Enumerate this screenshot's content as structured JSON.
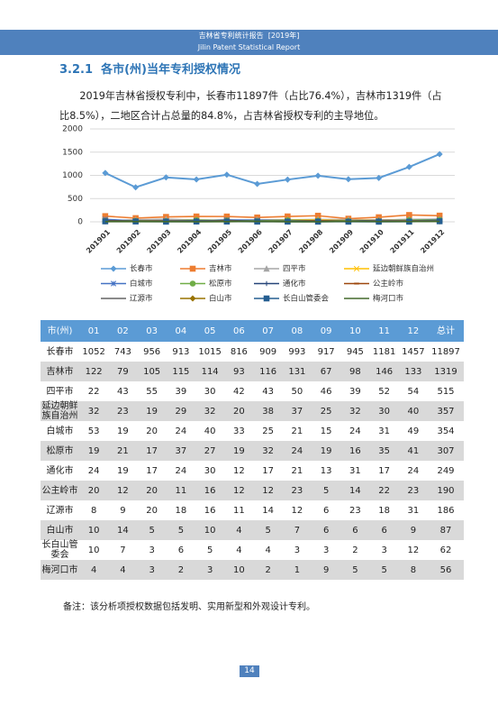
{
  "header": {
    "title": "吉林省专利统计报告",
    "year": "[2019年]",
    "subtitle": "Jilin Patent Statistical Report"
  },
  "section": {
    "number": "3.2.1",
    "title": "各市(州)当年专利授权情况"
  },
  "paragraph": "2019年吉林省授权专利中，长春市11897件（占比76.4%），吉林市1319件（占比8.5%），二地区合计占总量的84.8%，占吉林省授权专利的主导地位。",
  "chart_data": {
    "type": "line",
    "categories": [
      "201901",
      "201902",
      "201903",
      "201904",
      "201905",
      "201906",
      "201907",
      "201908",
      "201909",
      "201910",
      "201911",
      "201912"
    ],
    "ylim": [
      0,
      2000
    ],
    "yticks": [
      0,
      500,
      1000,
      1500,
      2000
    ],
    "grid": true,
    "series": [
      {
        "name": "长春市",
        "color": "#5b9bd5",
        "marker": "diamond",
        "values": [
          1052,
          743,
          956,
          913,
          1015,
          816,
          909,
          993,
          917,
          945,
          1181,
          1457
        ]
      },
      {
        "name": "吉林市",
        "color": "#ed7d31",
        "marker": "square",
        "values": [
          122,
          79,
          105,
          115,
          114,
          93,
          116,
          131,
          67,
          98,
          146,
          133
        ]
      },
      {
        "name": "四平市",
        "color": "#a5a5a5",
        "marker": "triangle",
        "values": [
          22,
          43,
          55,
          39,
          30,
          42,
          43,
          50,
          46,
          39,
          52,
          54
        ]
      },
      {
        "name": "延边朝鲜族自治州",
        "color": "#ffc000",
        "marker": "x",
        "values": [
          32,
          23,
          19,
          29,
          32,
          20,
          38,
          37,
          25,
          32,
          30,
          40
        ]
      },
      {
        "name": "白城市",
        "color": "#4472c4",
        "marker": "star",
        "values": [
          53,
          19,
          20,
          24,
          40,
          33,
          25,
          21,
          15,
          24,
          31,
          49
        ]
      },
      {
        "name": "松原市",
        "color": "#70ad47",
        "marker": "circle",
        "values": [
          19,
          21,
          17,
          37,
          27,
          19,
          32,
          24,
          19,
          16,
          35,
          41
        ]
      },
      {
        "name": "通化市",
        "color": "#264478",
        "marker": "plus",
        "values": [
          24,
          19,
          17,
          24,
          30,
          12,
          17,
          21,
          13,
          31,
          17,
          24
        ]
      },
      {
        "name": "公主岭市",
        "color": "#9e480e",
        "marker": "dash",
        "values": [
          20,
          12,
          20,
          11,
          16,
          12,
          12,
          23,
          5,
          14,
          22,
          23
        ]
      },
      {
        "name": "辽源市",
        "color": "#636363",
        "marker": "none",
        "values": [
          8,
          9,
          20,
          18,
          16,
          11,
          14,
          12,
          6,
          23,
          18,
          31
        ]
      },
      {
        "name": "白山市",
        "color": "#997300",
        "marker": "diamond",
        "values": [
          10,
          14,
          5,
          5,
          10,
          4,
          5,
          7,
          6,
          6,
          6,
          9
        ]
      },
      {
        "name": "长白山管委会",
        "color": "#255e91",
        "marker": "square",
        "values": [
          10,
          7,
          3,
          6,
          5,
          4,
          4,
          3,
          3,
          2,
          3,
          12
        ]
      },
      {
        "name": "梅河口市",
        "color": "#43682b",
        "marker": "none",
        "values": [
          4,
          4,
          3,
          2,
          3,
          10,
          2,
          1,
          9,
          5,
          5,
          8
        ]
      }
    ]
  },
  "table": {
    "header": [
      "市(州)",
      "01",
      "02",
      "03",
      "04",
      "05",
      "06",
      "07",
      "08",
      "09",
      "10",
      "11",
      "12",
      "总计"
    ],
    "rows": [
      [
        "长春市",
        1052,
        743,
        956,
        913,
        1015,
        816,
        909,
        993,
        917,
        945,
        1181,
        1457,
        11897
      ],
      [
        "吉林市",
        122,
        79,
        105,
        115,
        114,
        93,
        116,
        131,
        67,
        98,
        146,
        133,
        1319
      ],
      [
        "四平市",
        22,
        43,
        55,
        39,
        30,
        42,
        43,
        50,
        46,
        39,
        52,
        54,
        515
      ],
      [
        "延边朝鲜族自治州",
        32,
        23,
        19,
        29,
        32,
        20,
        38,
        37,
        25,
        32,
        30,
        40,
        357
      ],
      [
        "白城市",
        53,
        19,
        20,
        24,
        40,
        33,
        25,
        21,
        15,
        24,
        31,
        49,
        354
      ],
      [
        "松原市",
        19,
        21,
        17,
        37,
        27,
        19,
        32,
        24,
        19,
        16,
        35,
        41,
        307
      ],
      [
        "通化市",
        24,
        19,
        17,
        24,
        30,
        12,
        17,
        21,
        13,
        31,
        17,
        24,
        249
      ],
      [
        "公主岭市",
        20,
        12,
        20,
        11,
        16,
        12,
        12,
        23,
        5,
        14,
        22,
        23,
        190
      ],
      [
        "辽源市",
        8,
        9,
        20,
        18,
        16,
        11,
        14,
        12,
        6,
        23,
        18,
        31,
        186
      ],
      [
        "白山市",
        10,
        14,
        5,
        5,
        10,
        4,
        5,
        7,
        6,
        6,
        6,
        9,
        87
      ],
      [
        "长白山管委会",
        10,
        7,
        3,
        6,
        5,
        4,
        4,
        3,
        3,
        2,
        3,
        12,
        62
      ],
      [
        "梅河口市",
        4,
        4,
        3,
        2,
        3,
        10,
        2,
        1,
        9,
        5,
        5,
        8,
        56
      ]
    ]
  },
  "note": "备注：该分析项授权数据包括发明、实用新型和外观设计专利。",
  "page_number": 14
}
